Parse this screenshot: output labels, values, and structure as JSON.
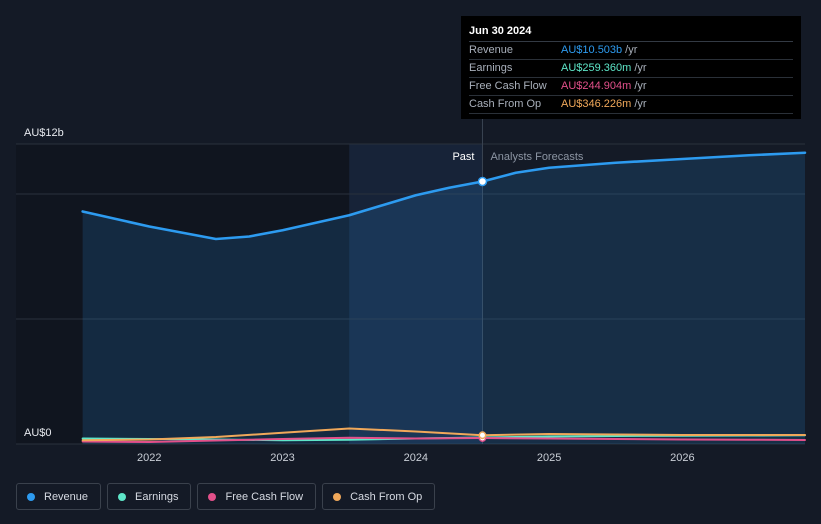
{
  "tooltip": {
    "date": "Jun 30 2024",
    "rows": [
      {
        "label": "Revenue",
        "value": "AU$10.503b",
        "unit": "/yr",
        "color": "#2d9bf0"
      },
      {
        "label": "Earnings",
        "value": "AU$259.360m",
        "unit": "/yr",
        "color": "#5ee6c8"
      },
      {
        "label": "Free Cash Flow",
        "value": "AU$244.904m",
        "unit": "/yr",
        "color": "#e2508a"
      },
      {
        "label": "Cash From Op",
        "value": "AU$346.226m",
        "unit": "/yr",
        "color": "#f0a85a"
      }
    ]
  },
  "legend": [
    {
      "label": "Revenue",
      "color": "#2d9bf0"
    },
    {
      "label": "Earnings",
      "color": "#5ee6c8"
    },
    {
      "label": "Free Cash Flow",
      "color": "#e2508a"
    },
    {
      "label": "Cash From Op",
      "color": "#f0a85a"
    }
  ],
  "chart_data": {
    "type": "line",
    "ylabel_top": "AU$12b",
    "ylabel_bottom": "AU$0",
    "ylim": [
      0,
      12
    ],
    "xlim": [
      2021.0,
      2026.92
    ],
    "x_ticks": [
      "2022",
      "2023",
      "2024",
      "2025",
      "2026"
    ],
    "past_label": "Past",
    "forecast_label": "Analysts Forecasts",
    "divider_x": 2024.5,
    "highlight_start_x": 2023.5,
    "series": [
      {
        "name": "Revenue",
        "color": "#2d9bf0",
        "x": [
          2021.5,
          2022.0,
          2022.25,
          2022.5,
          2022.75,
          2023.0,
          2023.25,
          2023.5,
          2023.75,
          2024.0,
          2024.25,
          2024.5,
          2024.75,
          2025.0,
          2025.5,
          2026.0,
          2026.5,
          2026.92
        ],
        "y": [
          9.3,
          8.7,
          8.45,
          8.2,
          8.3,
          8.55,
          8.85,
          9.15,
          9.55,
          9.95,
          10.25,
          10.5,
          10.85,
          11.05,
          11.25,
          11.4,
          11.55,
          11.65
        ]
      },
      {
        "name": "Earnings",
        "color": "#5ee6c8",
        "x": [
          2021.5,
          2022.0,
          2022.5,
          2023.0,
          2023.5,
          2024.0,
          2024.5,
          2025.0,
          2025.5,
          2026.0,
          2026.5,
          2026.92
        ],
        "y": [
          0.22,
          0.2,
          0.18,
          0.15,
          0.17,
          0.22,
          0.26,
          0.3,
          0.32,
          0.33,
          0.34,
          0.35
        ]
      },
      {
        "name": "Free Cash Flow",
        "color": "#e2508a",
        "x": [
          2021.5,
          2022.0,
          2022.5,
          2023.0,
          2023.5,
          2024.0,
          2024.5,
          2025.0,
          2025.5,
          2026.0,
          2026.5,
          2026.92
        ],
        "y": [
          0.1,
          0.08,
          0.14,
          0.2,
          0.25,
          0.22,
          0.24,
          0.22,
          0.2,
          0.18,
          0.17,
          0.16
        ]
      },
      {
        "name": "Cash From Op",
        "color": "#f0a85a",
        "x": [
          2021.5,
          2022.0,
          2022.5,
          2023.0,
          2023.5,
          2024.0,
          2024.5,
          2025.0,
          2025.5,
          2026.0,
          2026.5,
          2026.92
        ],
        "y": [
          0.15,
          0.18,
          0.28,
          0.45,
          0.62,
          0.5,
          0.35,
          0.4,
          0.38,
          0.36,
          0.36,
          0.36
        ]
      }
    ]
  }
}
